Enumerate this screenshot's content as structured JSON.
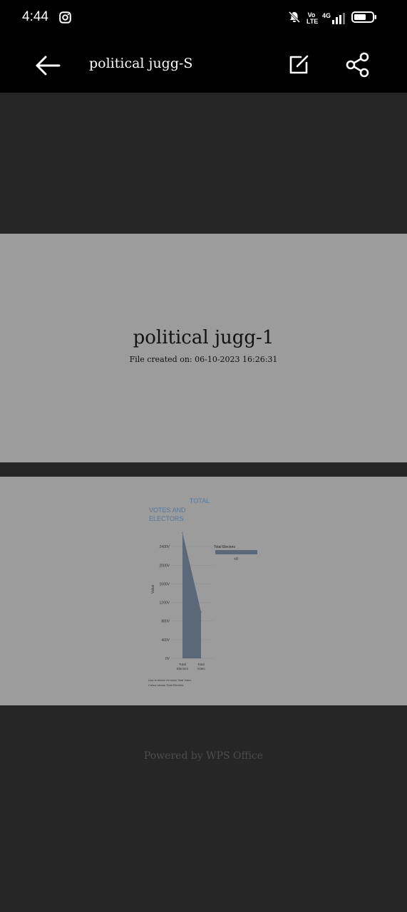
{
  "status": {
    "time": "4:44",
    "network": "Vo LTE",
    "network_type": "4G",
    "icons": [
      "instagram-icon",
      "bell-off-icon",
      "signal-icon",
      "battery-icon"
    ]
  },
  "appbar": {
    "title": "political jugg-S",
    "icons": [
      "back-arrow-icon",
      "edit-icon",
      "share-icon"
    ]
  },
  "page1": {
    "title": "political jugg-1",
    "created": "File created on: 06-10-2023 16:26:31"
  },
  "page2": {
    "chart_data": {
      "type": "area",
      "title": "TOTAL",
      "subtitle_lines": [
        "VOTES AND",
        "ELECTORS"
      ],
      "ylabel": "Value",
      "categories": [
        "Total Electors",
        "Total Votes"
      ],
      "values": [
        2700000,
        1000000
      ],
      "ylim": [
        0,
        2800000
      ],
      "y_ticks": [
        0,
        400000,
        800000,
        1200000,
        1600000,
        2000000,
        2400000
      ],
      "y_tick_labels": [
        "0V",
        "400V",
        "800V",
        "1200V",
        "1600V",
        "2000V",
        "2400V"
      ],
      "legend_title": "Total Electors",
      "legend_value": "+0",
      "footnotes": [
        "Line is shown for each Total Votes",
        "Colour shows Total Electors"
      ],
      "fill_color": "#5a687a"
    }
  },
  "footer": {
    "powered": "Powered by WPS Office"
  }
}
